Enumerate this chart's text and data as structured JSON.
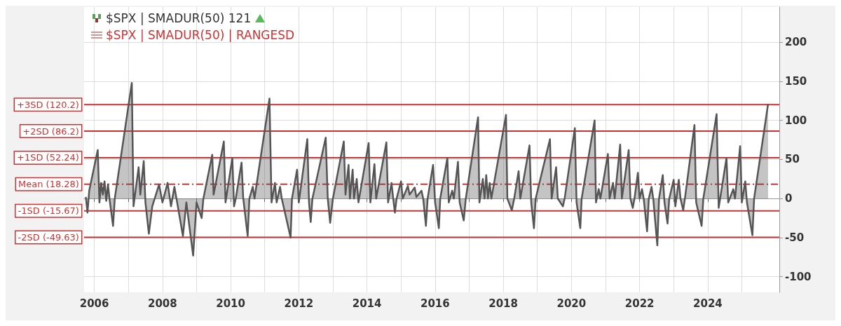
{
  "chart_data": {
    "type": "area",
    "legend": "top left",
    "grid": true,
    "marker": "none",
    "line_style": "solid",
    "annotations": [
      "$SPX | SMADUR(50) | RANGESD"
    ],
    "xlim": [
      2005.7,
      2026.1
    ],
    "xticks": [
      2006,
      {
        "value": 2007,
        "label": null
      },
      2008,
      {
        "value": 2009,
        "label": null
      },
      2010,
      {
        "value": 2011,
        "label": null
      },
      2012,
      {
        "value": 2013,
        "label": null
      },
      2014,
      {
        "value": 2015,
        "label": null
      },
      2016,
      {
        "value": 2017,
        "label": null
      },
      2018,
      {
        "value": 2019,
        "label": null
      },
      2020,
      {
        "value": 2021,
        "label": null
      },
      2022,
      {
        "value": 2023,
        "label": null
      },
      2024,
      {
        "value": 2025,
        "label": null
      }
    ],
    "ylim": [
      -120,
      245
    ],
    "yticks": [
      -100,
      -50,
      0,
      50,
      100,
      150,
      200
    ],
    "ref_lines": [
      {
        "axis": "y",
        "value": 120.2,
        "label": "+3SD (120.2)",
        "color": "#cc3333",
        "line_style": "solid"
      },
      {
        "axis": "y",
        "value": 86.2,
        "label": "+2SD (86.2)",
        "color": "#cc3333",
        "line_style": "solid"
      },
      {
        "axis": "y",
        "value": 52.24,
        "label": "+1SD (52.24)",
        "color": "#cc3333",
        "line_style": "solid"
      },
      {
        "axis": "y",
        "value": 18.28,
        "label": "Mean (18.28)",
        "color": "#cc3333",
        "line_style": "dashed"
      },
      {
        "axis": "y",
        "value": -15.67,
        "label": "-1SD (-15.67)",
        "color": "#cc3333",
        "line_style": "solid"
      },
      {
        "axis": "y",
        "value": -49.63,
        "label": "-2SD (-49.63)",
        "color": "#cc3333",
        "line_style": "solid"
      }
    ],
    "series": [
      {
        "name": "$SPX | SMADUR(50) 121",
        "color": "#555555",
        "x": [
          2005.75,
          2005.8,
          2005.85,
          2006.1,
          2006.15,
          2006.2,
          2006.25,
          2006.3,
          2006.35,
          2006.4,
          2006.45,
          2006.55,
          2006.6,
          2007.1,
          2007.15,
          2007.3,
          2007.35,
          2007.45,
          2007.5,
          2007.6,
          2007.7,
          2007.9,
          2008.0,
          2008.15,
          2008.25,
          2008.35,
          2008.45,
          2008.6,
          2008.7,
          2008.9,
          2009.0,
          2009.15,
          2009.2,
          2009.46,
          2009.5,
          2009.8,
          2009.85,
          2010.05,
          2010.1,
          2010.15,
          2010.32,
          2010.37,
          2010.5,
          2010.55,
          2010.65,
          2010.7,
          2011.14,
          2011.2,
          2011.3,
          2011.35,
          2011.45,
          2011.5,
          2011.76,
          2011.8,
          2011.95,
          2012.0,
          2012.25,
          2012.3,
          2012.35,
          2012.4,
          2012.79,
          2012.85,
          2012.92,
          2013.0,
          2013.32,
          2013.37,
          2013.46,
          2013.5,
          2013.58,
          2013.62,
          2013.7,
          2013.75,
          2014.05,
          2014.1,
          2014.22,
          2014.27,
          2014.57,
          2014.62,
          2014.72,
          2014.77,
          2014.82,
          2014.87,
          2015.0,
          2015.05,
          2015.2,
          2015.25,
          2015.4,
          2015.45,
          2015.6,
          2015.65,
          2015.73,
          2015.78,
          2015.94,
          2016.0,
          2016.11,
          2016.15,
          2016.36,
          2016.4,
          2016.5,
          2016.55,
          2016.67,
          2016.72,
          2016.84,
          2016.9,
          2017.26,
          2017.3,
          2017.4,
          2017.45,
          2017.5,
          2017.55,
          2017.6,
          2017.65,
          2018.08,
          2018.12,
          2018.25,
          2018.32,
          2018.45,
          2018.5,
          2018.77,
          2018.82,
          2018.9,
          2018.95,
          2019.37,
          2019.42,
          2019.55,
          2019.6,
          2019.75,
          2019.8,
          2020.1,
          2020.15,
          2020.26,
          2020.3,
          2020.68,
          2020.72,
          2020.8,
          2020.85,
          2021.07,
          2021.12,
          2021.22,
          2021.27,
          2021.43,
          2021.48,
          2021.68,
          2021.73,
          2021.8,
          2021.85,
          2021.95,
          2022.0,
          2022.07,
          2022.12,
          2022.22,
          2022.27,
          2022.35,
          2022.4,
          2022.52,
          2022.57,
          2022.68,
          2022.73,
          2022.82,
          2022.87,
          2023.0,
          2023.05,
          2023.15,
          2023.2,
          2023.28,
          2023.33,
          2023.61,
          2023.66,
          2023.82,
          2023.87,
          2024.26,
          2024.32,
          2024.55,
          2024.6,
          2024.75,
          2024.8,
          2024.95,
          2025.0,
          2025.1,
          2025.15,
          2025.31,
          2025.36,
          2025.77
        ],
        "values": [
          2,
          -18,
          10,
          62,
          -5,
          20,
          5,
          22,
          -3,
          18,
          -2,
          -35,
          0,
          148,
          -10,
          40,
          5,
          48,
          -5,
          -45,
          -10,
          18,
          -5,
          20,
          -10,
          15,
          -10,
          -48,
          -5,
          -73,
          -5,
          -25,
          0,
          56,
          5,
          73,
          -5,
          52,
          -10,
          0,
          46,
          0,
          -48,
          0,
          15,
          0,
          128,
          -5,
          20,
          -5,
          15,
          0,
          -50,
          0,
          37,
          -5,
          76,
          -5,
          -30,
          0,
          78,
          0,
          -31,
          0,
          73,
          5,
          43,
          0,
          37,
          0,
          25,
          -5,
          71,
          -5,
          44,
          0,
          72,
          -5,
          20,
          0,
          -18,
          0,
          22,
          0,
          16,
          5,
          14,
          2,
          10,
          0,
          -35,
          0,
          43,
          -5,
          -38,
          0,
          52,
          -5,
          10,
          0,
          47,
          -5,
          -28,
          0,
          104,
          -5,
          25,
          0,
          30,
          0,
          20,
          0,
          107,
          0,
          -15,
          0,
          35,
          0,
          68,
          -5,
          -38,
          0,
          76,
          0,
          40,
          0,
          -10,
          0,
          90,
          -5,
          -38,
          0,
          100,
          -5,
          12,
          0,
          57,
          0,
          20,
          0,
          69,
          0,
          62,
          0,
          -12,
          0,
          33,
          0,
          12,
          0,
          -42,
          0,
          15,
          0,
          -60,
          0,
          30,
          -5,
          -32,
          0,
          24,
          -10,
          24,
          0,
          -15,
          0,
          94,
          -5,
          -35,
          0,
          108,
          -12,
          52,
          -5,
          12,
          0,
          67,
          -5,
          22,
          -5,
          -47,
          0,
          121
        ]
      }
    ]
  }
}
